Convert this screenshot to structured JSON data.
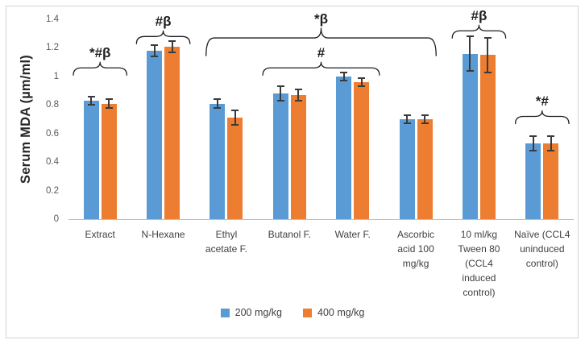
{
  "figure": {
    "kind": "grouped-bar-chart-with-error-bars"
  },
  "chart_data": {
    "type": "bar",
    "title": "",
    "xlabel": "",
    "ylabel": "Serum MDA (µm/ml)",
    "ylim": [
      0,
      1.4
    ],
    "ytick_labels": [
      "0",
      "0.2",
      "0.4",
      "0.6",
      "0.8",
      "1",
      "1.2",
      "1.4"
    ],
    "ytick_values": [
      0,
      0.2,
      0.4,
      0.6,
      0.8,
      1,
      1.2,
      1.4
    ],
    "grid": false,
    "legend_position": "bottom",
    "categories": [
      "Extract",
      "N-Hexane",
      "Ethyl acetate F.",
      "Butanol F.",
      "Water F.",
      "Ascorbic acid 100 mg/kg",
      "10 ml/kg Tween 80 (CCL4 induced control)",
      "Naïve (CCL4 uninduced control)"
    ],
    "category_lines": [
      [
        "Extract"
      ],
      [
        "N-Hexane"
      ],
      [
        "Ethyl",
        "acetate F."
      ],
      [
        "Butanol F."
      ],
      [
        "Water F."
      ],
      [
        "Ascorbic",
        "acid 100",
        "mg/kg"
      ],
      [
        "10 ml/kg",
        "Tween 80",
        "(CCL4",
        "induced",
        "control)"
      ],
      [
        "Naïve (CCL4",
        "uninduced",
        "control)"
      ]
    ],
    "series": [
      {
        "name": "200 mg/kg",
        "color": "#5B9BD5",
        "values": [
          0.83,
          1.18,
          0.81,
          0.88,
          1.0,
          0.7,
          1.16,
          0.53
        ],
        "errors": [
          0.03,
          0.04,
          0.03,
          0.05,
          0.03,
          0.03,
          0.12,
          0.05
        ]
      },
      {
        "name": "400 mg/kg",
        "color": "#ED7D31",
        "values": [
          0.81,
          1.21,
          0.71,
          0.87,
          0.96,
          0.7,
          1.15,
          0.53
        ],
        "errors": [
          0.03,
          0.04,
          0.05,
          0.04,
          0.03,
          0.03,
          0.12,
          0.05
        ]
      }
    ],
    "annotations": [
      {
        "label": "*#β",
        "from": 0,
        "to": 0,
        "level": 1.06
      },
      {
        "label": "#β",
        "from": 1,
        "to": 1,
        "level": 1.28
      },
      {
        "label": "*β",
        "from": 2,
        "to": 5,
        "level": 1.27
      },
      {
        "label": "#",
        "from": 3,
        "to": 4,
        "level": 1.06
      },
      {
        "label": "#β",
        "from": 6,
        "to": 6,
        "level": 1.32
      },
      {
        "label": "*#",
        "from": 7,
        "to": 7,
        "level": 0.72
      }
    ]
  },
  "colors": {
    "bar_200": "#5B9BD5",
    "bar_400": "#ED7D31",
    "error_bar": "#3A3A3A",
    "axis_line": "#BFBFBF",
    "tick_label": "#595959",
    "category_label": "#404040",
    "annotation": "#1F1F1F",
    "frame_border": "#D3D3D3",
    "background": "#FFFFFF"
  }
}
